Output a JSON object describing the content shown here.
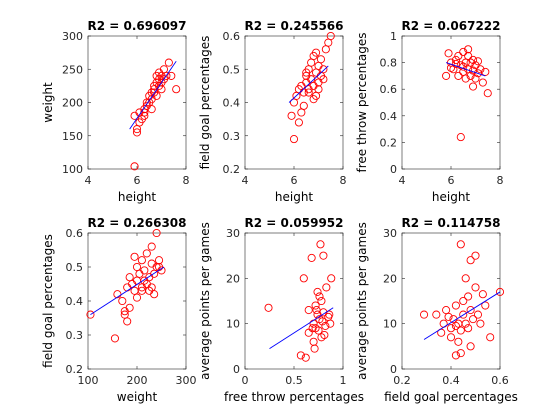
{
  "colors": {
    "points": "#ff0000",
    "fit": "#0000ff"
  },
  "chart_data": [
    {
      "type": "scatter",
      "title": "R2 = 0.696097",
      "xlabel": "height",
      "ylabel": "weight",
      "xlim": [
        4,
        8
      ],
      "ylim": [
        100,
        300
      ],
      "xticks": [
        4,
        6,
        8
      ],
      "yticks": [
        100,
        150,
        200,
        250,
        300
      ],
      "fit_line": {
        "x": [
          5.7,
          7.6
        ],
        "y": [
          160,
          262
        ]
      },
      "x": [
        5.9,
        6.0,
        6.0,
        6.1,
        6.2,
        6.3,
        6.3,
        6.4,
        6.5,
        6.5,
        6.6,
        6.6,
        6.7,
        6.7,
        6.8,
        6.8,
        6.8,
        6.9,
        6.9,
        7.0,
        7.0,
        7.1,
        7.2,
        7.3,
        5.9,
        6.4,
        6.1,
        7.4,
        6.7,
        7.0,
        7.6,
        6.3,
        6.9,
        6.6,
        7.1
      ],
      "y": [
        104,
        155,
        160,
        185,
        175,
        185,
        190,
        195,
        200,
        210,
        205,
        215,
        220,
        225,
        230,
        210,
        240,
        235,
        225,
        240,
        220,
        235,
        240,
        260,
        180,
        200,
        170,
        240,
        215,
        230,
        220,
        180,
        245,
        190,
        250
      ]
    },
    {
      "type": "scatter",
      "title": "R2 = 0.245566",
      "xlabel": "height",
      "ylabel": "field goal percentages",
      "xlim": [
        4,
        8
      ],
      "ylim": [
        0.2,
        0.6
      ],
      "xticks": [
        4,
        6,
        8
      ],
      "yticks": [
        0.2,
        0.3,
        0.4,
        0.5,
        0.6
      ],
      "fit_line": {
        "x": [
          5.8,
          7.4
        ],
        "y": [
          0.4,
          0.51
        ]
      },
      "x": [
        5.9,
        6.0,
        6.1,
        6.2,
        6.3,
        6.3,
        6.4,
        6.5,
        6.5,
        6.6,
        6.6,
        6.7,
        6.7,
        6.8,
        6.8,
        6.9,
        6.9,
        7.0,
        7.0,
        7.1,
        7.1,
        7.2,
        7.3,
        7.4,
        7.5,
        6.0,
        6.4,
        6.8,
        7.2,
        6.2,
        6.9,
        7.0,
        6.6,
        6.5
      ],
      "y": [
        0.36,
        0.29,
        0.42,
        0.44,
        0.45,
        0.37,
        0.43,
        0.46,
        0.48,
        0.44,
        0.5,
        0.47,
        0.52,
        0.45,
        0.54,
        0.49,
        0.42,
        0.51,
        0.46,
        0.53,
        0.48,
        0.5,
        0.56,
        0.58,
        0.6,
        0.4,
        0.39,
        0.41,
        0.47,
        0.34,
        0.55,
        0.44,
        0.43,
        0.49
      ]
    },
    {
      "type": "scatter",
      "title": "R2 = 0.067222",
      "xlabel": "height",
      "ylabel": "free throw percentages",
      "xlim": [
        4,
        8
      ],
      "ylim": [
        0,
        1
      ],
      "xticks": [
        4,
        6,
        8
      ],
      "yticks": [
        0,
        0.2,
        0.4,
        0.6,
        0.8,
        1
      ],
      "fit_line": {
        "x": [
          5.8,
          7.4
        ],
        "y": [
          0.8,
          0.7
        ]
      },
      "x": [
        5.8,
        5.9,
        6.0,
        6.1,
        6.2,
        6.3,
        6.3,
        6.4,
        6.5,
        6.5,
        6.6,
        6.6,
        6.7,
        6.7,
        6.8,
        6.8,
        6.9,
        6.9,
        7.0,
        7.0,
        7.1,
        7.2,
        7.3,
        7.4,
        7.5,
        6.4,
        6.2,
        6.7,
        6.0,
        7.1,
        6.9,
        6.5
      ],
      "y": [
        0.7,
        0.87,
        0.8,
        0.75,
        0.82,
        0.7,
        0.85,
        0.78,
        0.73,
        0.88,
        0.8,
        0.68,
        0.85,
        0.75,
        0.8,
        0.7,
        0.82,
        0.74,
        0.78,
        0.68,
        0.72,
        0.75,
        0.65,
        0.73,
        0.57,
        0.24,
        0.79,
        0.9,
        0.76,
        0.81,
        0.62,
        0.77
      ]
    },
    {
      "type": "scatter",
      "title": "R2 = 0.266308",
      "xlabel": "weight",
      "ylabel": "field goal percentages",
      "xlim": [
        100,
        300
      ],
      "ylim": [
        0.2,
        0.6
      ],
      "xticks": [
        100,
        200,
        300
      ],
      "yticks": [
        0.2,
        0.3,
        0.4,
        0.5,
        0.6
      ],
      "fit_line": {
        "x": [
          105,
          255
        ],
        "y": [
          0.36,
          0.5
        ]
      },
      "x": [
        105,
        155,
        160,
        170,
        175,
        180,
        180,
        185,
        190,
        195,
        200,
        200,
        205,
        210,
        210,
        215,
        220,
        220,
        225,
        225,
        230,
        230,
        235,
        235,
        240,
        240,
        245,
        250,
        185,
        200,
        215,
        230,
        245,
        175,
        195,
        210
      ],
      "y": [
        0.36,
        0.29,
        0.42,
        0.4,
        0.37,
        0.44,
        0.34,
        0.47,
        0.45,
        0.43,
        0.5,
        0.46,
        0.48,
        0.44,
        0.52,
        0.49,
        0.45,
        0.54,
        0.47,
        0.43,
        0.51,
        0.56,
        0.48,
        0.42,
        0.5,
        0.6,
        0.52,
        0.49,
        0.38,
        0.41,
        0.46,
        0.44,
        0.5,
        0.36,
        0.53,
        0.43
      ]
    },
    {
      "type": "scatter",
      "title": "R2 = 0.059952",
      "xlabel": "free throw percentages",
      "ylabel": "average points per games",
      "xlim": [
        0,
        1
      ],
      "ylim": [
        0,
        30
      ],
      "xticks": [
        0,
        0.5,
        1
      ],
      "yticks": [
        0,
        10,
        20,
        30
      ],
      "fit_line": {
        "x": [
          0.25,
          0.9
        ],
        "y": [
          4.5,
          13.5
        ]
      },
      "x": [
        0.24,
        0.57,
        0.6,
        0.62,
        0.65,
        0.65,
        0.68,
        0.7,
        0.7,
        0.72,
        0.72,
        0.74,
        0.74,
        0.75,
        0.76,
        0.77,
        0.78,
        0.78,
        0.79,
        0.8,
        0.8,
        0.82,
        0.83,
        0.85,
        0.87,
        0.88,
        0.73,
        0.71,
        0.76,
        0.81,
        0.69,
        0.86
      ],
      "y": [
        13.5,
        3.0,
        20.0,
        2.5,
        13.0,
        8.0,
        24.5,
        10.0,
        6.0,
        14.0,
        9.0,
        12.0,
        17.0,
        8.5,
        11.0,
        27.5,
        15.0,
        7.0,
        10.5,
        12.5,
        25.0,
        9.5,
        18.0,
        11.5,
        10.0,
        20.0,
        13.0,
        4.5,
        16.0,
        7.5,
        9.0,
        12.0
      ]
    },
    {
      "type": "scatter",
      "title": "R2 = 0.114758",
      "xlabel": "field goal percentages",
      "ylabel": "average points per games",
      "xlim": [
        0.2,
        0.6
      ],
      "ylim": [
        0,
        30
      ],
      "xticks": [
        0.2,
        0.4,
        0.6
      ],
      "yticks": [
        0,
        10,
        20,
        30
      ],
      "fit_line": {
        "x": [
          0.29,
          0.6
        ],
        "y": [
          6.5,
          17.0
        ]
      },
      "x": [
        0.29,
        0.34,
        0.36,
        0.37,
        0.38,
        0.4,
        0.4,
        0.41,
        0.42,
        0.42,
        0.43,
        0.43,
        0.44,
        0.44,
        0.45,
        0.45,
        0.46,
        0.46,
        0.47,
        0.47,
        0.48,
        0.48,
        0.49,
        0.5,
        0.5,
        0.51,
        0.52,
        0.53,
        0.54,
        0.56,
        0.6,
        0.44,
        0.42,
        0.48,
        0.39
      ],
      "y": [
        12.0,
        12.0,
        8.0,
        10.0,
        13.0,
        9.0,
        7.0,
        11.0,
        3.0,
        14.0,
        10.0,
        6.0,
        27.5,
        8.5,
        15.0,
        12.0,
        20.0,
        10.0,
        16.0,
        9.0,
        13.0,
        24.0,
        11.0,
        18.0,
        25.0,
        12.0,
        10.0,
        16.5,
        14.0,
        7.0,
        17.0,
        3.5,
        9.5,
        5.0,
        11.5
      ]
    }
  ]
}
